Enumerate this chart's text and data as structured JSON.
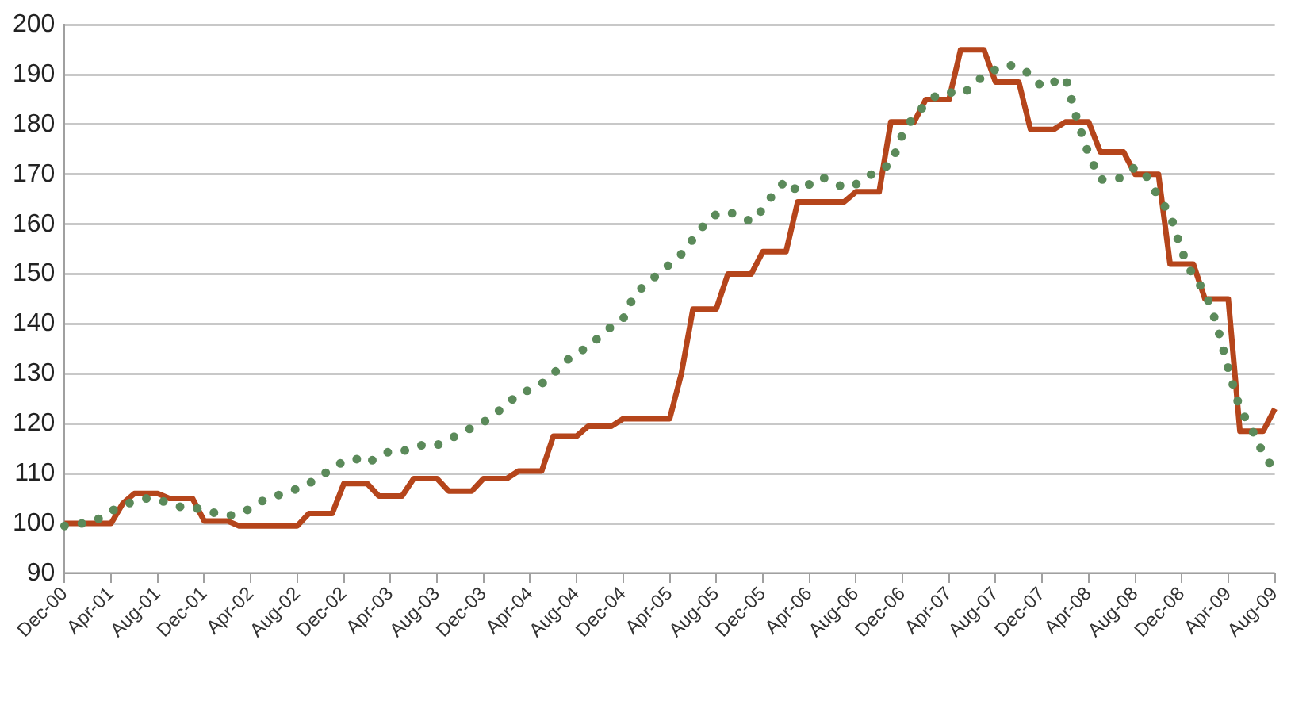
{
  "chart_data": {
    "type": "line",
    "categories": [
      "Dec-00",
      null,
      null,
      null,
      "Apr-01",
      null,
      null,
      null,
      "Aug-01",
      null,
      null,
      null,
      "Dec-01",
      null,
      null,
      null,
      "Apr-02",
      null,
      null,
      null,
      "Aug-02",
      null,
      null,
      null,
      "Dec-02",
      null,
      null,
      null,
      "Apr-03",
      null,
      null,
      null,
      "Aug-03",
      null,
      null,
      null,
      "Dec-03",
      null,
      null,
      null,
      "Apr-04",
      null,
      null,
      null,
      "Aug-04",
      null,
      null,
      null,
      "Dec-04",
      null,
      null,
      null,
      "Apr-05",
      null,
      null,
      null,
      "Aug-05",
      null,
      null,
      null,
      "Dec-05",
      null,
      null,
      null,
      "Apr-06",
      null,
      null,
      null,
      "Aug-06",
      null,
      null,
      null,
      "Dec-06",
      null,
      null,
      null,
      "Apr-07",
      null,
      null,
      null,
      "Aug-07",
      null,
      null,
      null,
      "Dec-07",
      null,
      null,
      null,
      "Apr-08",
      null,
      null,
      null,
      "Aug-08",
      null,
      null,
      null,
      "Dec-08",
      null,
      null,
      null,
      "Apr-09",
      null,
      null,
      null,
      "Aug-09"
    ],
    "series": [
      {
        "color": "#5b8a5a",
        "line_style": "dotted",
        "values": [
          99.5,
          99.8,
          100.2,
          101,
          102.5,
          103.5,
          104.5,
          105,
          104.8,
          104,
          103.3,
          103,
          103,
          102,
          101.5,
          102,
          103,
          104.5,
          105.5,
          106,
          107,
          108,
          109.5,
          111,
          112.5,
          113,
          112,
          113.5,
          114.5,
          114.5,
          115,
          116,
          115.7,
          116.8,
          118,
          119.2,
          120.3,
          122,
          123.8,
          126,
          126.8,
          128,
          130,
          132.5,
          134,
          135.5,
          137.5,
          139.5,
          141,
          146,
          148,
          150,
          152,
          154,
          157,
          160,
          162,
          162.5,
          161.7,
          160.5,
          163,
          166.4,
          168.8,
          166.6,
          168,
          169.5,
          168.5,
          167.3,
          168,
          169.5,
          171,
          172,
          178,
          181.7,
          184,
          186,
          186.5,
          186,
          187.5,
          190,
          191,
          192,
          191.5,
          190,
          187.5,
          188.5,
          189.5,
          181,
          174,
          169,
          168.8,
          169.5,
          171.5,
          169.5,
          165.5,
          162,
          154.6,
          149.5,
          146.5,
          140,
          131,
          123,
          119,
          114,
          110.5
        ]
      },
      {
        "color": "#b5451b",
        "line_style": "solid",
        "values": [
          100,
          100,
          100,
          100,
          100,
          104,
          106,
          106,
          106,
          105,
          105,
          105,
          100.5,
          100.5,
          100.5,
          99.5,
          99.5,
          99.5,
          99.5,
          99.5,
          99.5,
          102,
          102,
          102,
          108,
          108,
          108,
          105.5,
          105.5,
          105.5,
          109,
          109,
          109,
          106.5,
          106.5,
          106.5,
          109,
          109,
          109,
          110.5,
          110.5,
          110.5,
          117.5,
          117.5,
          117.5,
          119.5,
          119.5,
          119.5,
          121,
          121,
          121,
          121,
          121,
          130,
          143,
          143,
          143,
          150,
          150,
          150,
          154.5,
          154.5,
          154.5,
          164.5,
          164.5,
          164.5,
          164.5,
          164.5,
          166.5,
          166.5,
          166.5,
          180.5,
          180.5,
          180.5,
          185,
          185,
          185,
          195,
          195,
          195,
          188.5,
          188.5,
          188.5,
          179,
          179,
          179,
          180.5,
          180.5,
          180.5,
          174.5,
          174.5,
          174.5,
          170,
          170,
          170,
          152,
          152,
          152,
          145,
          145,
          145,
          118.5,
          118.5,
          118.5,
          123
        ]
      }
    ],
    "ylim": [
      90,
      200
    ],
    "yticks": [
      90,
      100,
      110,
      120,
      130,
      140,
      150,
      160,
      170,
      180,
      190,
      200
    ],
    "grid": "y",
    "marker": "none"
  }
}
